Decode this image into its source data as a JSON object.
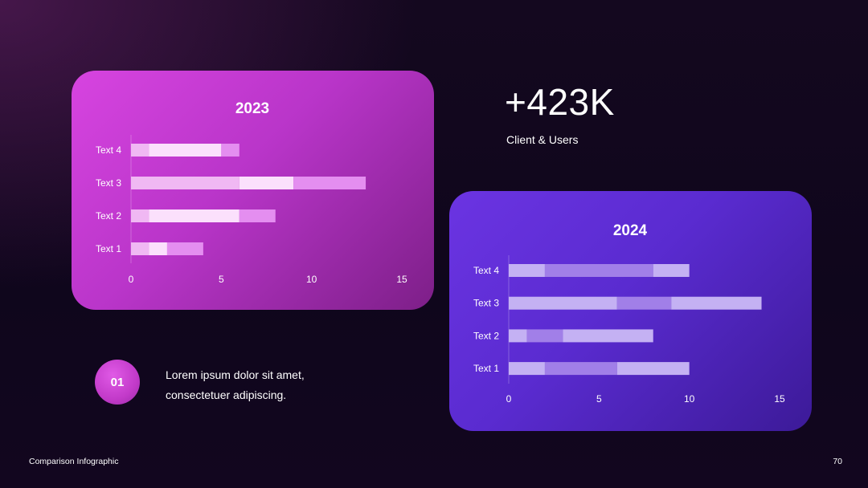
{
  "stat": {
    "value": "+423K",
    "caption": "Client & Users"
  },
  "step": {
    "number": "01",
    "line1": "Lorem ipsum dolor sit amet,",
    "line2": "consectetuer adipiscing."
  },
  "footer": {
    "title": "Comparison Infographic",
    "page": "70"
  },
  "colors": {
    "card_2023": "#c83dd6",
    "card_2024": "#5a2bd0",
    "bar_2023": [
      "#f0b8f3",
      "#fbe0fc",
      "#e48ef0"
    ],
    "bar_2024": [
      "#c4b1f3",
      "#a17fe8",
      "#c4b1f3"
    ]
  },
  "chart_data": [
    {
      "type": "bar",
      "orientation": "horizontal",
      "stacked": true,
      "title": "2023",
      "categories": [
        "Text 4",
        "Text 3",
        "Text 2",
        "Text 1"
      ],
      "series": [
        {
          "values": [
            1,
            6,
            1,
            1
          ]
        },
        {
          "values": [
            4,
            3,
            5,
            1
          ]
        },
        {
          "values": [
            1,
            4,
            2,
            2
          ]
        }
      ],
      "xlim": [
        0,
        15
      ],
      "ticks": [
        0,
        5,
        10,
        15
      ],
      "tick_labels": [
        "0",
        "5",
        "10",
        "15"
      ],
      "grid": false
    },
    {
      "type": "bar",
      "orientation": "horizontal",
      "stacked": true,
      "title": "2024",
      "categories": [
        "Text 4",
        "Text 3",
        "Text 2",
        "Text 1"
      ],
      "series": [
        {
          "values": [
            2,
            6,
            1,
            2
          ]
        },
        {
          "values": [
            6,
            3,
            2,
            4
          ]
        },
        {
          "values": [
            2,
            5,
            5,
            4
          ]
        }
      ],
      "xlim": [
        0,
        15
      ],
      "ticks": [
        0,
        5,
        10,
        15
      ],
      "tick_labels": [
        "0",
        "5",
        "10",
        "15"
      ],
      "grid": false
    }
  ]
}
